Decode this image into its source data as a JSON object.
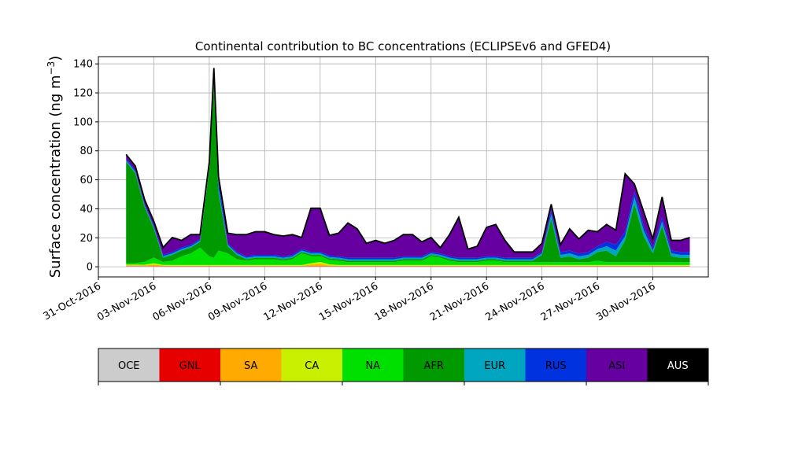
{
  "chart_data": {
    "type": "area",
    "stacked": true,
    "title": "Continental contribution to BC concentrations (ECLIPSEv6 and GFED4)",
    "ylabel": "Surface concentration (ng m",
    "ylabel_sup": "−3",
    "ylabel_close": ")",
    "xlabel": "",
    "xlim": [
      "2016-10-31",
      "2016-12-03"
    ],
    "ylim": [
      -7,
      145
    ],
    "grid": true,
    "x_ticks": [
      "2016-10-31",
      "2016-11-03",
      "2016-11-06",
      "2016-11-09",
      "2016-11-12",
      "2016-11-15",
      "2016-11-18",
      "2016-11-21",
      "2016-11-24",
      "2016-11-27",
      "2016-11-30"
    ],
    "x_tick_labels": [
      "31-Oct-2016",
      "03-Nov-2016",
      "06-Nov-2016",
      "09-Nov-2016",
      "12-Nov-2016",
      "15-Nov-2016",
      "18-Nov-2016",
      "21-Nov-2016",
      "24-Nov-2016",
      "27-Nov-2016",
      "30-Nov-2016"
    ],
    "y_ticks": [
      0,
      20,
      40,
      60,
      80,
      100,
      120,
      140
    ],
    "y_tick_labels": [
      "0",
      "20",
      "40",
      "60",
      "80",
      "100",
      "120",
      "140"
    ],
    "total_line_color": "#000000",
    "x": [
      "2016-11-01T12",
      "2016-11-02T00",
      "2016-11-02T12",
      "2016-11-03T00",
      "2016-11-03T12",
      "2016-11-04T00",
      "2016-11-04T12",
      "2016-11-05T00",
      "2016-11-05T12",
      "2016-11-06T00",
      "2016-11-06T06",
      "2016-11-06T12",
      "2016-11-07T00",
      "2016-11-07T12",
      "2016-11-08T00",
      "2016-11-08T12",
      "2016-11-09T00",
      "2016-11-09T12",
      "2016-11-10T00",
      "2016-11-10T12",
      "2016-11-11T00",
      "2016-11-11T12",
      "2016-11-12T00",
      "2016-11-12T12",
      "2016-11-13T00",
      "2016-11-13T12",
      "2016-11-14T00",
      "2016-11-14T12",
      "2016-11-15T00",
      "2016-11-15T12",
      "2016-11-16T00",
      "2016-11-16T12",
      "2016-11-17T00",
      "2016-11-17T12",
      "2016-11-18T00",
      "2016-11-18T12",
      "2016-11-19T00",
      "2016-11-19T12",
      "2016-11-20T00",
      "2016-11-20T12",
      "2016-11-21T00",
      "2016-11-21T12",
      "2016-11-22T00",
      "2016-11-22T12",
      "2016-11-23T00",
      "2016-11-23T12",
      "2016-11-24T00",
      "2016-11-24T12",
      "2016-11-25T00",
      "2016-11-25T12",
      "2016-11-26T00",
      "2016-11-26T12",
      "2016-11-27T00",
      "2016-11-27T12",
      "2016-11-28T00",
      "2016-11-28T12",
      "2016-11-29T00",
      "2016-11-29T12",
      "2016-11-30T00",
      "2016-11-30T12",
      "2016-12-01T00",
      "2016-12-01T12",
      "2016-12-02T00"
    ],
    "series": [
      {
        "name": "OCE",
        "color": "#cccccc",
        "values": [
          0.3,
          0.3,
          0.3,
          0.2,
          0.2,
          0.2,
          0.2,
          0.2,
          0.2,
          0.2,
          0.2,
          0.2,
          0.2,
          0.2,
          0.2,
          0.2,
          0.2,
          0.2,
          0.2,
          0.2,
          0.2,
          0.2,
          0.2,
          0.2,
          0.2,
          0.2,
          0.2,
          0.2,
          0.2,
          0.2,
          0.2,
          0.2,
          0.2,
          0.2,
          0.2,
          0.2,
          0.2,
          0.2,
          0.2,
          0.2,
          0.2,
          0.2,
          0.2,
          0.2,
          0.2,
          0.2,
          0.2,
          0.2,
          0.2,
          0.2,
          0.2,
          0.2,
          0.2,
          0.2,
          0.2,
          0.2,
          0.2,
          0.2,
          0.2,
          0.2,
          0.2,
          0.2,
          0.2
        ]
      },
      {
        "name": "GNL",
        "color": "#e60000",
        "values": [
          0.2,
          0.2,
          0.2,
          0.2,
          0.2,
          0.2,
          0.2,
          0.2,
          0.2,
          0.2,
          0.2,
          0.2,
          0.2,
          0.2,
          0.2,
          0.2,
          0.2,
          0.2,
          0.2,
          0.2,
          0.2,
          0.2,
          0.2,
          0.2,
          0.2,
          0.2,
          0.2,
          0.2,
          0.2,
          0.2,
          0.2,
          0.2,
          0.2,
          0.2,
          0.2,
          0.2,
          0.2,
          0.2,
          0.2,
          0.2,
          0.2,
          0.2,
          0.2,
          0.2,
          0.2,
          0.2,
          0.2,
          0.2,
          0.2,
          0.2,
          0.2,
          0.2,
          0.2,
          0.2,
          0.2,
          0.2,
          0.2,
          0.2,
          0.2,
          0.2,
          0.2,
          0.2,
          0.2
        ]
      },
      {
        "name": "SA",
        "color": "#ffaa00",
        "values": [
          0.5,
          0.5,
          0.4,
          1.0,
          0.4,
          0.3,
          0.3,
          0.3,
          0.3,
          0.3,
          0.3,
          0.3,
          0.3,
          0.3,
          0.3,
          0.3,
          0.3,
          0.3,
          0.3,
          0.3,
          0.3,
          1.0,
          1.5,
          0.5,
          0.3,
          0.3,
          0.3,
          0.3,
          0.3,
          0.3,
          0.3,
          0.3,
          0.3,
          0.3,
          0.3,
          0.3,
          0.3,
          0.3,
          0.3,
          0.3,
          0.3,
          0.3,
          0.3,
          0.3,
          0.3,
          0.3,
          0.3,
          0.3,
          0.3,
          0.3,
          0.3,
          0.3,
          0.3,
          0.3,
          0.3,
          0.3,
          0.3,
          0.3,
          0.3,
          0.3,
          0.3,
          0.3,
          0.3
        ]
      },
      {
        "name": "CA",
        "color": "#c8f000",
        "values": [
          0.5,
          0.5,
          0.5,
          1.0,
          0.5,
          0.5,
          0.5,
          0.5,
          0.5,
          0.5,
          0.5,
          0.5,
          0.5,
          0.5,
          0.5,
          0.5,
          0.5,
          0.5,
          0.5,
          0.5,
          0.5,
          1.0,
          1.5,
          0.8,
          0.5,
          0.5,
          0.5,
          0.5,
          0.5,
          0.5,
          0.5,
          0.5,
          0.5,
          0.5,
          0.5,
          0.5,
          0.5,
          0.5,
          0.5,
          0.5,
          0.5,
          0.5,
          0.5,
          0.5,
          0.5,
          0.5,
          0.5,
          0.5,
          0.5,
          0.5,
          0.5,
          0.5,
          0.5,
          0.5,
          0.5,
          0.5,
          0.5,
          0.5,
          0.5,
          0.5,
          0.5,
          0.5,
          0.5
        ]
      },
      {
        "name": "NA",
        "color": "#00e000",
        "values": [
          1,
          1,
          2,
          4,
          2,
          3,
          6,
          8,
          12,
          6,
          5,
          10,
          8,
          4,
          3,
          4,
          4,
          4,
          3,
          4,
          8,
          5,
          4,
          3,
          3,
          2,
          2,
          2,
          2,
          2,
          2,
          3,
          3,
          3,
          6,
          5,
          3,
          2,
          2,
          2,
          3,
          3,
          2,
          2,
          2,
          2,
          2,
          2,
          2,
          2,
          2,
          2,
          3,
          2,
          2,
          2,
          2,
          2,
          2,
          2,
          2,
          2,
          2
        ]
      },
      {
        "name": "AFR",
        "color": "#009900",
        "values": [
          70,
          62,
          38,
          20,
          3,
          4,
          4,
          4,
          4,
          60,
          120,
          40,
          5,
          3,
          1,
          1,
          1,
          1,
          1,
          1,
          1,
          1,
          1,
          1,
          1,
          1,
          1,
          1,
          1,
          1,
          1,
          1,
          1,
          1,
          1,
          1,
          1,
          1,
          1,
          1,
          1,
          1,
          1,
          1,
          1,
          1,
          5,
          30,
          3,
          4,
          2,
          3,
          6,
          8,
          4,
          15,
          40,
          18,
          6,
          25,
          4,
          3,
          3
        ]
      },
      {
        "name": "EUR",
        "color": "#00a5c0",
        "values": [
          1,
          1,
          1,
          1,
          1,
          1,
          1,
          1,
          1,
          2,
          3,
          3,
          1,
          1,
          1,
          1,
          1,
          1,
          1,
          1,
          1,
          1,
          1,
          1,
          1,
          1,
          1,
          1,
          1,
          1,
          1,
          1,
          1,
          1,
          1,
          1,
          1,
          1,
          1,
          1,
          1,
          1,
          1,
          1,
          1,
          1,
          1,
          3,
          2,
          2,
          2,
          2,
          2,
          3,
          4,
          3,
          5,
          4,
          2,
          3,
          2,
          2,
          2
        ]
      },
      {
        "name": "RUS",
        "color": "#0032e0",
        "values": [
          1,
          1,
          1,
          1,
          1,
          1,
          1,
          1,
          1,
          2,
          5,
          5,
          1,
          1,
          1,
          1,
          1,
          1,
          1,
          1,
          1,
          1,
          1,
          1,
          1,
          1,
          1,
          1,
          1,
          1,
          1,
          1,
          1,
          1,
          1,
          1,
          1,
          1,
          1,
          1,
          1,
          1,
          1,
          1,
          1,
          1,
          1,
          3,
          2,
          2,
          2,
          2,
          2,
          3,
          4,
          3,
          4,
          3,
          2,
          3,
          2,
          2,
          2
        ]
      },
      {
        "name": "ASI",
        "color": "#6600a0",
        "values": [
          3,
          3,
          3,
          3,
          5,
          10,
          5,
          7,
          3,
          1,
          3,
          3,
          7,
          12,
          15,
          16,
          16,
          14,
          14,
          14,
          8,
          30,
          30,
          14,
          16,
          24,
          20,
          10,
          12,
          10,
          12,
          15,
          15,
          10,
          10,
          4,
          15,
          28,
          6,
          8,
          20,
          22,
          12,
          4,
          4,
          4,
          6,
          4,
          5,
          15,
          10,
          15,
          10,
          12,
          10,
          40,
          5,
          10,
          6,
          14,
          7,
          8,
          10
        ]
      }
    ]
  },
  "legend": {
    "items": [
      {
        "label": "OCE",
        "color": "#cccccc",
        "text_color": "#000000"
      },
      {
        "label": "GNL",
        "color": "#e60000",
        "text_color": "#000000"
      },
      {
        "label": "SA",
        "color": "#ffaa00",
        "text_color": "#000000"
      },
      {
        "label": "CA",
        "color": "#c8f000",
        "text_color": "#000000"
      },
      {
        "label": "NA",
        "color": "#00e000",
        "text_color": "#000000"
      },
      {
        "label": "AFR",
        "color": "#009900",
        "text_color": "#000000"
      },
      {
        "label": "EUR",
        "color": "#00a5c0",
        "text_color": "#000000"
      },
      {
        "label": "RUS",
        "color": "#0032e0",
        "text_color": "#000000"
      },
      {
        "label": "ASI",
        "color": "#6600a0",
        "text_color": "#000000"
      },
      {
        "label": "AUS",
        "color": "#000000",
        "text_color": "#ffffff"
      }
    ]
  }
}
